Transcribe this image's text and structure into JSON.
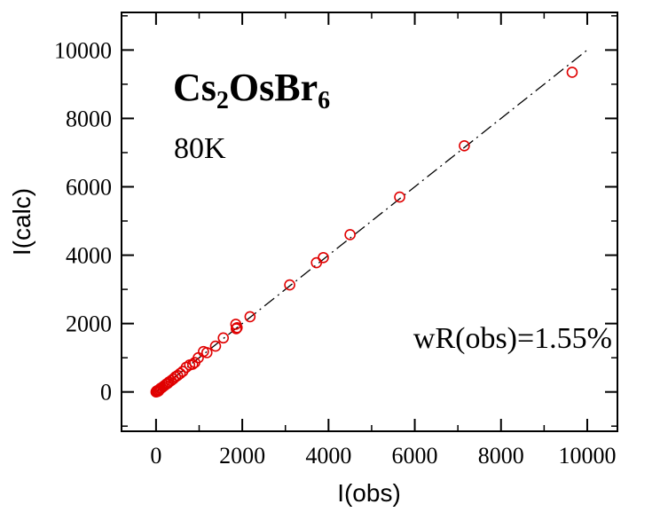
{
  "chart_data": {
    "type": "scatter",
    "title": "",
    "xlabel": "I(obs)",
    "ylabel": "I(calc)",
    "xlim": [
      -800,
      10700
    ],
    "ylim": [
      -1150,
      11100
    ],
    "x_ticks": [
      0,
      2000,
      4000,
      6000,
      8000,
      10000
    ],
    "y_ticks": [
      0,
      2000,
      4000,
      6000,
      8000,
      10000
    ],
    "x_tick_labels": [
      "0",
      "2000",
      "4000",
      "6000",
      "8000",
      "10000"
    ],
    "y_tick_labels": [
      "0",
      "2000",
      "4000",
      "6000",
      "8000",
      "10000"
    ],
    "grid": false,
    "marker_color": "#e00000",
    "line_color": "#000000",
    "reference_line": {
      "style": "dash-dot",
      "from": [
        0,
        0
      ],
      "to": [
        10000,
        10000
      ]
    },
    "annotations": {
      "compound": {
        "base": "Cs",
        "sub1": "2",
        "mid": "OsBr",
        "sub2": "6"
      },
      "temperature": "80K",
      "wr": "wR(obs)=1.55%"
    },
    "series": [
      {
        "name": "Cs2OsBr6 80K",
        "points": [
          [
            0,
            0
          ],
          [
            10,
            20
          ],
          [
            20,
            30
          ],
          [
            30,
            10
          ],
          [
            40,
            40
          ],
          [
            50,
            50
          ],
          [
            60,
            30
          ],
          [
            80,
            70
          ],
          [
            100,
            100
          ],
          [
            130,
            120
          ],
          [
            160,
            150
          ],
          [
            200,
            190
          ],
          [
            240,
            230
          ],
          [
            270,
            250
          ],
          [
            300,
            290
          ],
          [
            350,
            330
          ],
          [
            400,
            380
          ],
          [
            450,
            440
          ],
          [
            500,
            480
          ],
          [
            560,
            540
          ],
          [
            620,
            600
          ],
          [
            700,
            720
          ],
          [
            780,
            790
          ],
          [
            850,
            810
          ],
          [
            900,
            860
          ],
          [
            980,
            1000
          ],
          [
            1100,
            1180
          ],
          [
            1180,
            1150
          ],
          [
            1380,
            1340
          ],
          [
            1560,
            1580
          ],
          [
            1850,
            1980
          ],
          [
            1860,
            1850
          ],
          [
            1880,
            1880
          ],
          [
            2180,
            2200
          ],
          [
            3100,
            3130
          ],
          [
            3720,
            3780
          ],
          [
            3880,
            3930
          ],
          [
            4500,
            4600
          ],
          [
            5650,
            5700
          ],
          [
            7150,
            7200
          ],
          [
            9650,
            9350
          ]
        ]
      }
    ]
  }
}
